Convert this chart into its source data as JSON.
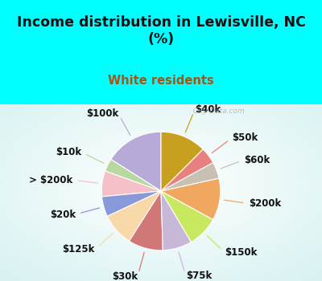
{
  "title": "Income distribution in Lewisville, NC\n(%)",
  "subtitle": "White residents",
  "labels": [
    "$100k",
    "$10k",
    "> $200k",
    "$20k",
    "$125k",
    "$30k",
    "$75k",
    "$150k",
    "$200k",
    "$60k",
    "$50k",
    "$40k"
  ],
  "sizes": [
    16.0,
    3.5,
    7.0,
    5.5,
    9.0,
    9.5,
    8.0,
    8.5,
    11.5,
    4.5,
    4.5,
    12.5
  ],
  "colors": [
    "#b8aad8",
    "#b8d8a0",
    "#f5c0c8",
    "#8898d8",
    "#f8d8a8",
    "#d07878",
    "#c8b8d8",
    "#c8e860",
    "#f0a860",
    "#c8c0b0",
    "#e88080",
    "#c8a020"
  ],
  "background_top": "#00ffff",
  "title_color": "#111111",
  "subtitle_color": "#b05010",
  "watermark": "City-Data.com",
  "startangle": 90,
  "label_fontsize": 8.5,
  "label_color": "#111111"
}
